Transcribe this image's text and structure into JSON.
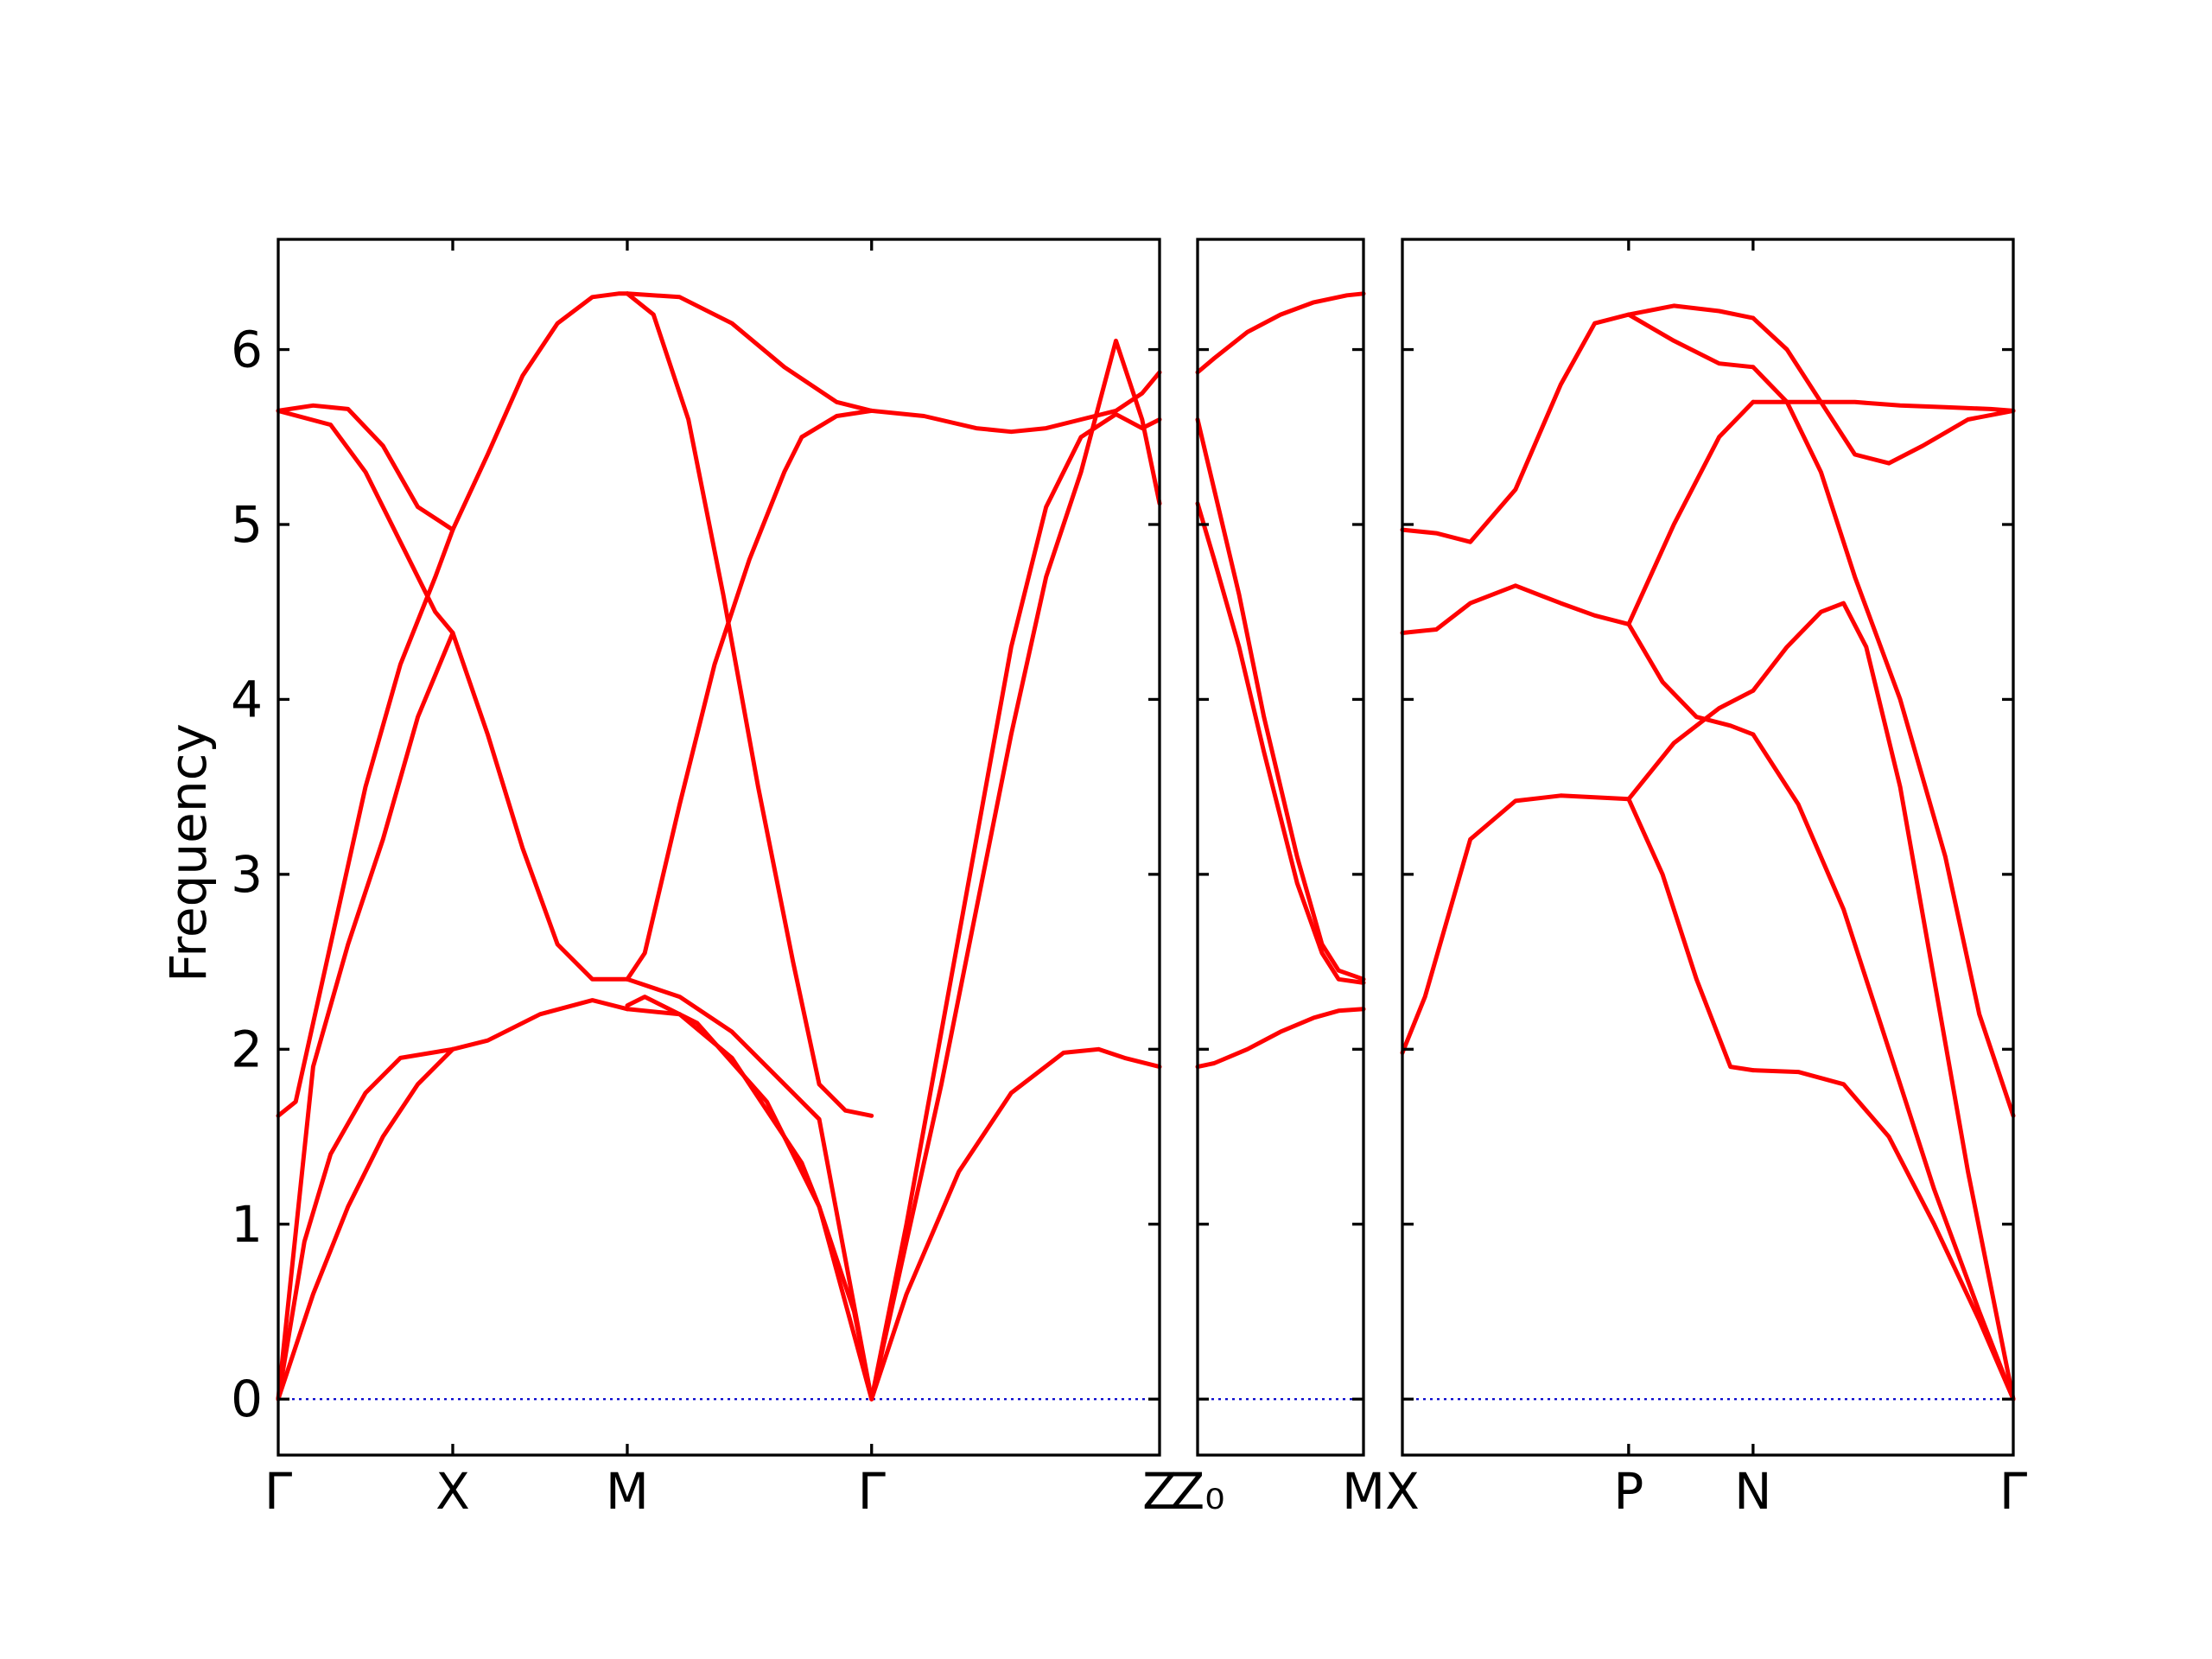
{
  "chart_data": {
    "type": "line",
    "ylabel": "Frequency",
    "ylim": [
      -0.32,
      6.63
    ],
    "yticks": [
      0,
      1,
      2,
      3,
      4,
      5,
      6
    ],
    "band_color": "#ff0000",
    "zero_line_color": "#0000cc",
    "panels": [
      {
        "tick_labels": [
          "Γ",
          "X",
          "M",
          "Γ",
          "Z"
        ],
        "tick_positions": [
          0,
          1,
          2,
          3.4,
          5.05
        ],
        "xlim": [
          0,
          5.05
        ],
        "series": [
          {
            "x": [
              0,
              0.15,
              0.3,
              0.5,
              0.7,
              1.0
            ],
            "y": [
              0,
              0.9,
              1.4,
              1.75,
              1.95,
              2.0
            ]
          },
          {
            "x": [
              1.0,
              1.2,
              1.5,
              1.8,
              2.0
            ],
            "y": [
              2.0,
              2.05,
              2.2,
              2.28,
              2.23
            ]
          },
          {
            "x": [
              0,
              0.2,
              0.4,
              0.6,
              0.8,
              1.0
            ],
            "y": [
              0,
              0.6,
              1.1,
              1.5,
              1.8,
              2.0
            ]
          },
          {
            "x": [
              2.0,
              2.1,
              2.4,
              2.8,
              3.1,
              3.3,
              3.4
            ],
            "y": [
              2.25,
              2.3,
              2.15,
              1.7,
              1.1,
              0.5,
              0
            ]
          },
          {
            "x": [
              2.0,
              2.3,
              2.6,
              2.9,
              3.0,
              3.1,
              3.25,
              3.4
            ],
            "y": [
              2.23,
              2.2,
              1.95,
              1.5,
              1.35,
              1.1,
              0.55,
              0
            ]
          },
          {
            "x": [
              2.0,
              2.3,
              2.6,
              2.9,
              3.1,
              3.25,
              3.4
            ],
            "y": [
              2.4,
              2.3,
              2.1,
              1.8,
              1.6,
              0.8,
              0
            ]
          },
          {
            "x": [
              3.4,
              3.6,
              3.9,
              4.2,
              4.5,
              4.7,
              4.85,
              5.05
            ],
            "y": [
              0,
              0.6,
              1.3,
              1.75,
              1.98,
              2.0,
              1.95,
              1.9
            ]
          },
          {
            "x": [
              0,
              0.1,
              0.3,
              0.5,
              0.7,
              0.9,
              1.0
            ],
            "y": [
              1.62,
              1.7,
              2.6,
              3.5,
              4.2,
              4.7,
              4.97
            ]
          },
          {
            "x": [
              1.0,
              1.2,
              1.4,
              1.6,
              1.8,
              1.95,
              2.0
            ],
            "y": [
              4.97,
              5.4,
              5.85,
              6.15,
              6.3,
              6.32,
              6.32
            ]
          },
          {
            "x": [
              0,
              0.2,
              0.4,
              0.6,
              0.8,
              1.0
            ],
            "y": [
              5.65,
              5.68,
              5.66,
              5.45,
              5.1,
              4.97
            ]
          },
          {
            "x": [
              0,
              0.3,
              0.5,
              0.7,
              0.9,
              1.0
            ],
            "y": [
              5.65,
              5.57,
              5.3,
              4.9,
              4.5,
              4.38
            ]
          },
          {
            "x": [
              1.0,
              1.2,
              1.4,
              1.6,
              1.8,
              1.9,
              2.0
            ],
            "y": [
              4.38,
              3.8,
              3.15,
              2.6,
              2.4,
              2.4,
              2.4
            ]
          },
          {
            "x": [
              0,
              0.2,
              0.4,
              0.6,
              0.8,
              1.0
            ],
            "y": [
              0,
              1.9,
              2.6,
              3.2,
              3.9,
              4.38
            ]
          },
          {
            "x": [
              2.0,
              2.1,
              2.3,
              2.5,
              2.7,
              2.9,
              3.0
            ],
            "y": [
              2.4,
              2.55,
              3.4,
              4.2,
              4.8,
              5.3,
              5.5
            ]
          },
          {
            "x": [
              3.0,
              3.2,
              3.4
            ],
            "y": [
              5.5,
              5.62,
              5.65
            ]
          },
          {
            "x": [
              2.0,
              2.15,
              2.35,
              2.55,
              2.75,
              2.95,
              3.1,
              3.25,
              3.4
            ],
            "y": [
              6.32,
              6.2,
              5.6,
              4.6,
              3.5,
              2.5,
              1.8,
              1.65,
              1.62
            ]
          },
          {
            "x": [
              2.0,
              2.3,
              2.6,
              2.9,
              3.2,
              3.4
            ],
            "y": [
              6.32,
              6.3,
              6.15,
              5.9,
              5.7,
              5.65
            ]
          },
          {
            "x": [
              3.4,
              3.7,
              4.0,
              4.2,
              4.4,
              4.6,
              4.8,
              4.95,
              5.05
            ],
            "y": [
              5.65,
              5.62,
              5.55,
              5.53,
              5.55,
              5.6,
              5.65,
              5.75,
              5.87
            ]
          },
          {
            "x": [
              3.4,
              3.6,
              3.8,
              4.0,
              4.2,
              4.4,
              4.6,
              4.8,
              4.95,
              5.05
            ],
            "y": [
              0,
              0.9,
              1.8,
              2.8,
              3.8,
              4.7,
              5.3,
              6.05,
              5.6,
              5.12
            ]
          },
          {
            "x": [
              3.4,
              3.6,
              3.8,
              4.0,
              4.2,
              4.4,
              4.6,
              4.8,
              4.95,
              5.05
            ],
            "y": [
              0,
              1.0,
              2.1,
              3.2,
              4.3,
              5.1,
              5.5,
              5.63,
              5.55,
              5.6
            ]
          }
        ]
      },
      {
        "tick_labels": [
          "Z₀",
          "M"
        ],
        "tick_positions": [
          0,
          1
        ],
        "xlim": [
          0,
          1
        ],
        "series": [
          {
            "x": [
              0,
              0.1,
              0.3,
              0.5,
              0.7,
              0.9,
              1.0
            ],
            "y": [
              5.87,
              5.95,
              6.1,
              6.2,
              6.27,
              6.31,
              6.32
            ]
          },
          {
            "x": [
              0,
              0.1,
              0.3,
              0.5,
              0.7,
              0.85,
              1.0
            ],
            "y": [
              1.9,
              1.92,
              2.0,
              2.1,
              2.18,
              2.22,
              2.23
            ]
          },
          {
            "x": [
              0,
              0.1,
              0.25,
              0.4,
              0.6,
              0.75,
              0.85,
              1.0
            ],
            "y": [
              5.6,
              5.2,
              4.6,
              3.9,
              3.1,
              2.6,
              2.45,
              2.4
            ]
          },
          {
            "x": [
              0,
              0.1,
              0.25,
              0.4,
              0.6,
              0.75,
              0.85,
              1.0
            ],
            "y": [
              5.12,
              4.8,
              4.3,
              3.7,
              2.95,
              2.55,
              2.4,
              2.38
            ]
          }
        ]
      },
      {
        "tick_labels": [
          "X",
          "P",
          "N",
          "Γ"
        ],
        "tick_positions": [
          0,
          1,
          1.55,
          2.7
        ],
        "xlim": [
          0,
          2.7
        ],
        "series": [
          {
            "x": [
              0,
              0.15,
              0.3,
              0.5,
              0.7,
              0.85,
              1.0
            ],
            "y": [
              4.97,
              4.95,
              4.9,
              5.2,
              5.8,
              6.15,
              6.2
            ]
          },
          {
            "x": [
              1.0,
              1.2,
              1.4,
              1.55
            ],
            "y": [
              6.2,
              6.25,
              6.22,
              6.18
            ]
          },
          {
            "x": [
              1.55,
              1.7,
              1.85,
              2.0,
              2.15,
              2.3,
              2.5,
              2.7
            ],
            "y": [
              6.18,
              6.0,
              5.7,
              5.4,
              5.35,
              5.45,
              5.6,
              5.65
            ]
          },
          {
            "x": [
              1.0,
              1.2,
              1.4,
              1.55
            ],
            "y": [
              6.2,
              6.05,
              5.92,
              5.9
            ]
          },
          {
            "x": [
              1.55,
              1.7,
              1.85,
              2.0,
              2.2,
              2.4,
              2.55,
              2.7
            ],
            "y": [
              5.9,
              5.7,
              5.3,
              4.7,
              4.0,
              3.1,
              2.2,
              1.62
            ]
          },
          {
            "x": [
              0,
              0.15,
              0.3,
              0.5,
              0.7,
              0.85,
              1.0
            ],
            "y": [
              4.38,
              4.4,
              4.55,
              4.65,
              4.55,
              4.48,
              4.43
            ]
          },
          {
            "x": [
              1.0,
              1.2,
              1.4,
              1.55
            ],
            "y": [
              4.43,
              5.0,
              5.5,
              5.7
            ]
          },
          {
            "x": [
              1.55,
              1.8,
              2.0,
              2.2,
              2.4,
              2.6,
              2.7
            ],
            "y": [
              5.7,
              5.7,
              5.7,
              5.68,
              5.67,
              5.66,
              5.65
            ]
          },
          {
            "x": [
              1.0,
              1.15,
              1.3,
              1.45,
              1.55
            ],
            "y": [
              4.43,
              4.1,
              3.9,
              3.85,
              3.8
            ]
          },
          {
            "x": [
              1.55,
              1.75,
              1.95,
              2.15,
              2.35,
              2.55,
              2.7
            ],
            "y": [
              3.8,
              3.4,
              2.8,
              2.0,
              1.2,
              0.5,
              0
            ]
          },
          {
            "x": [
              0,
              0.1,
              0.3,
              0.5,
              0.7,
              0.85,
              1.0
            ],
            "y": [
              1.98,
              2.3,
              3.2,
              3.42,
              3.45,
              3.44,
              3.43
            ]
          },
          {
            "x": [
              1.0,
              1.2,
              1.4,
              1.55
            ],
            "y": [
              3.43,
              3.75,
              3.95,
              4.05
            ]
          },
          {
            "x": [
              1.55,
              1.7,
              1.85,
              1.95,
              2.05,
              2.2,
              2.35,
              2.5,
              2.7
            ],
            "y": [
              4.05,
              4.3,
              4.5,
              4.55,
              4.3,
              3.5,
              2.4,
              1.3,
              0
            ]
          },
          {
            "x": [
              1.0,
              1.15,
              1.3,
              1.45,
              1.55
            ],
            "y": [
              3.43,
              3.0,
              2.4,
              1.9,
              1.88
            ]
          },
          {
            "x": [
              1.55,
              1.75,
              1.95,
              2.15,
              2.35,
              2.55,
              2.7
            ],
            "y": [
              1.88,
              1.87,
              1.8,
              1.5,
              1.0,
              0.45,
              0
            ]
          }
        ]
      }
    ]
  }
}
